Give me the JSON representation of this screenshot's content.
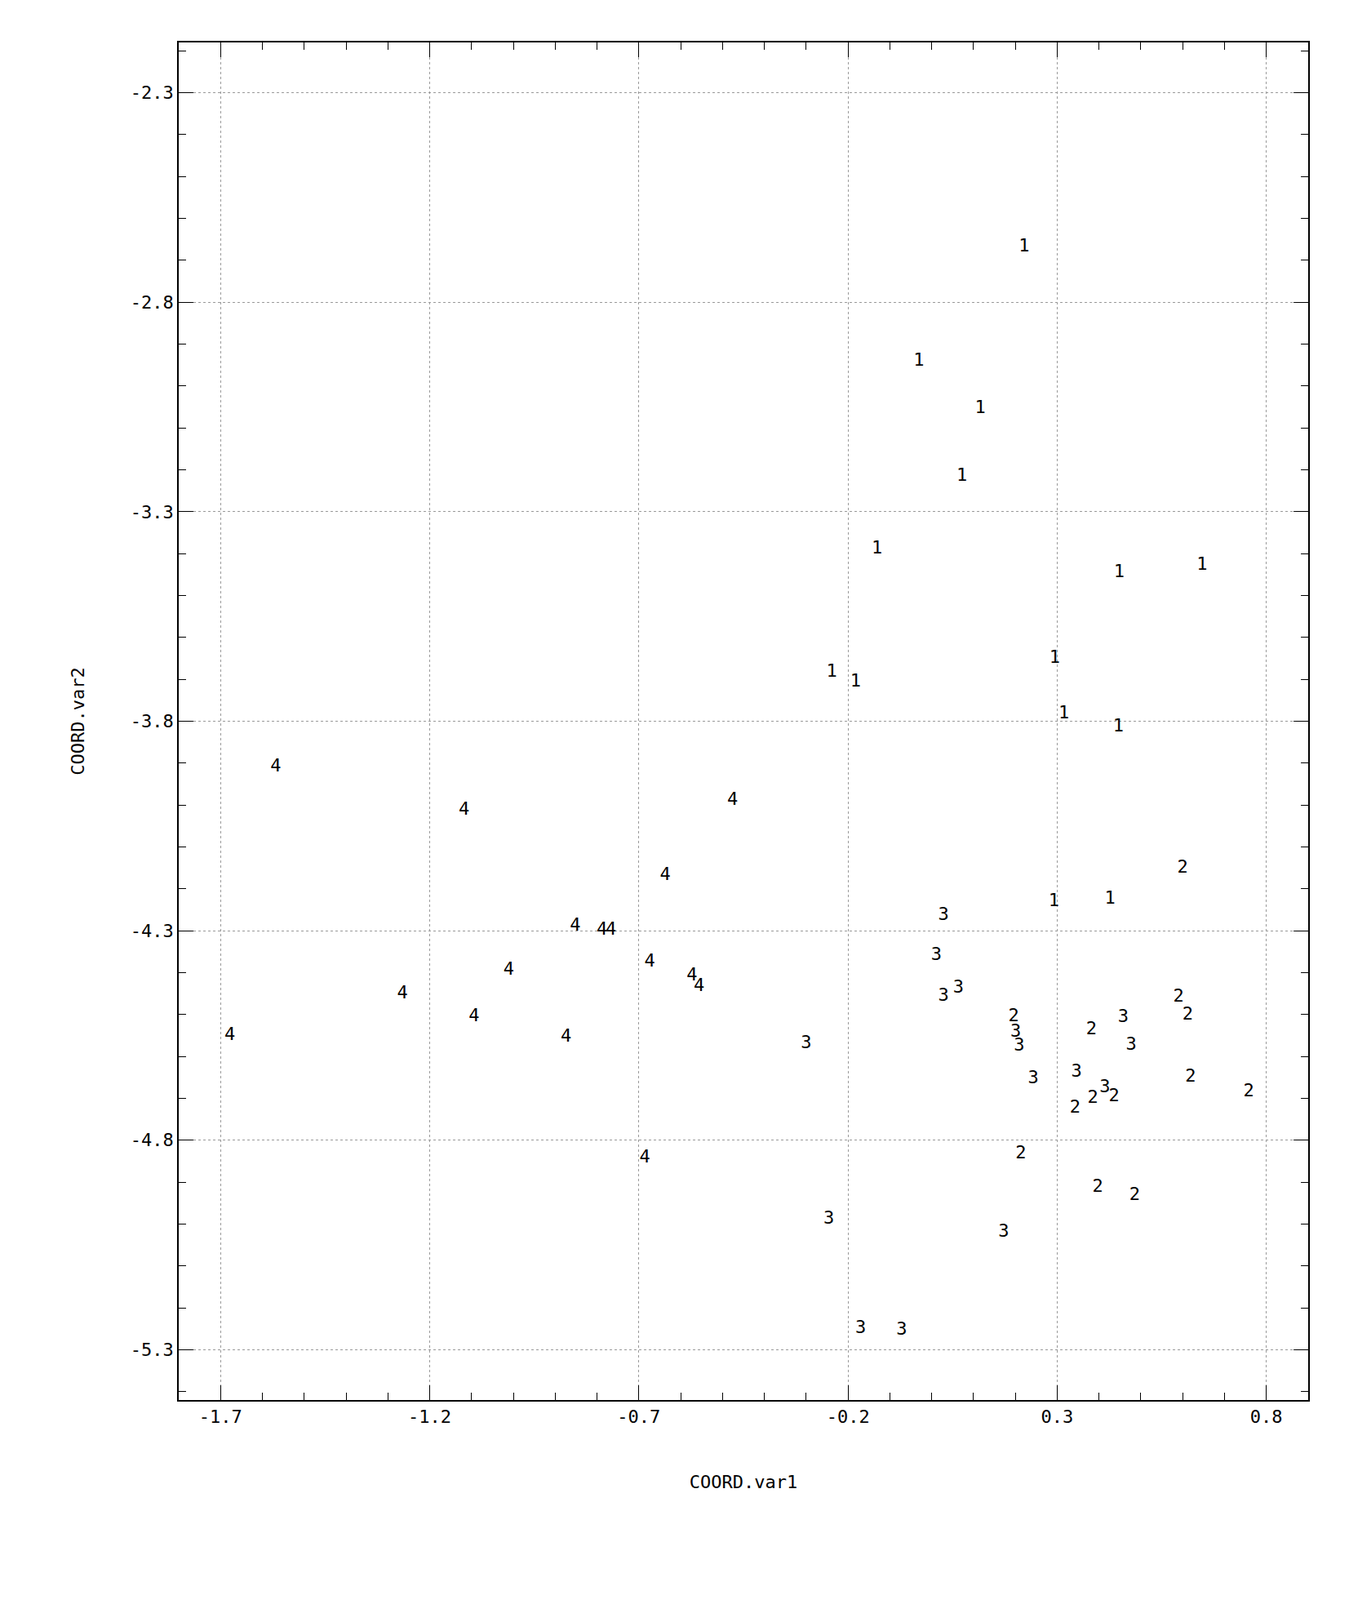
{
  "chart_data": {
    "type": "scatter",
    "x_label": "COORD.var1",
    "y_label": "COORD.var2",
    "xlim": [
      -1.8,
      0.9
    ],
    "ylim": [
      -5.42,
      -2.18
    ],
    "xticks": [
      -1.7,
      -1.2,
      -0.7,
      -0.2,
      0.3,
      0.8
    ],
    "yticks": [
      -2.3,
      -2.8,
      -3.3,
      -3.8,
      -4.3,
      -4.8,
      -5.3
    ],
    "grid": true,
    "marker": "text",
    "color": "#000000",
    "series": [
      {
        "name": "1",
        "x": [
          0.221,
          -0.031,
          0.116,
          0.072,
          -0.131,
          0.448,
          0.646,
          0.294,
          -0.239,
          -0.182,
          0.316,
          0.446,
          0.292,
          0.426
        ],
        "y": [
          -2.668,
          -2.941,
          -3.053,
          -3.216,
          -3.389,
          -3.445,
          -3.428,
          -3.65,
          -3.684,
          -3.706,
          -3.782,
          -3.814,
          -4.23,
          -4.225
        ]
      },
      {
        "name": "2",
        "x": [
          0.6,
          0.59,
          0.612,
          0.196,
          0.382,
          0.619,
          0.758,
          0.343,
          0.385,
          0.436,
          0.213,
          0.397,
          0.485
        ],
        "y": [
          -4.15,
          -4.459,
          -4.501,
          -4.506,
          -4.537,
          -4.65,
          -4.684,
          -4.723,
          -4.701,
          -4.696,
          -4.832,
          -4.913,
          -4.932
        ]
      },
      {
        "name": "3",
        "x": [
          0.028,
          0.011,
          0.028,
          0.064,
          0.201,
          0.209,
          0.458,
          0.477,
          -0.3,
          0.243,
          0.346,
          0.414,
          -0.246,
          0.172,
          -0.17,
          -0.072
        ],
        "y": [
          -4.264,
          -4.359,
          -4.457,
          -4.437,
          -4.542,
          -4.576,
          -4.508,
          -4.574,
          -4.569,
          -4.654,
          -4.637,
          -4.674,
          -4.988,
          -5.02,
          -5.249,
          -5.254
        ]
      },
      {
        "name": "4",
        "x": [
          -1.568,
          -1.118,
          -0.476,
          -0.637,
          -0.852,
          -0.788,
          -0.767,
          -0.674,
          -1.011,
          -1.265,
          -0.573,
          -0.556,
          -1.094,
          -0.874,
          -1.678,
          -0.686
        ],
        "y": [
          -3.909,
          -4.013,
          -3.989,
          -4.169,
          -4.289,
          -4.299,
          -4.299,
          -4.374,
          -4.394,
          -4.45,
          -4.408,
          -4.433,
          -4.506,
          -4.554,
          -4.55,
          -4.842
        ]
      }
    ]
  }
}
